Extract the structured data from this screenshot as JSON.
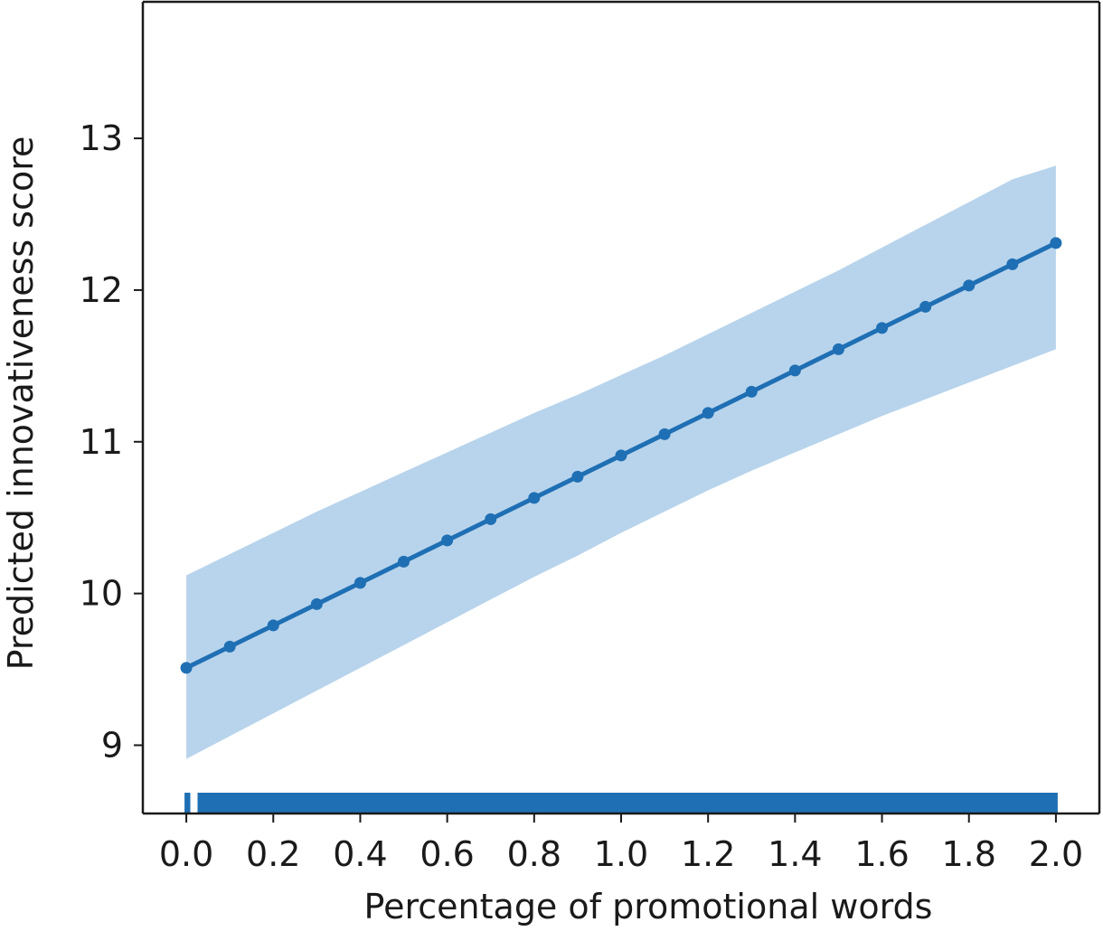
{
  "chart_data": {
    "type": "line",
    "title": "",
    "xlabel": "Percentage of promotional words",
    "ylabel": "Predicted innovativeness score",
    "xlim": [
      -0.1,
      2.1
    ],
    "ylim": [
      8.55,
      13.9
    ],
    "grid": false,
    "legend": "none",
    "xticks": [
      "0.0",
      "0.2",
      "0.4",
      "0.6",
      "0.8",
      "1.0",
      "1.2",
      "1.4",
      "1.6",
      "1.8",
      "2.0"
    ],
    "yticks": [
      "9",
      "10",
      "11",
      "12",
      "13"
    ],
    "series": [
      {
        "x": [
          0.0,
          0.1,
          0.2,
          0.3,
          0.4,
          0.5,
          0.6,
          0.7,
          0.8,
          0.9,
          1.0,
          1.1,
          1.2,
          1.3,
          1.4,
          1.5,
          1.6,
          1.7,
          1.8,
          1.9,
          2.0
        ],
        "y": [
          9.51,
          9.65,
          9.79,
          9.93,
          10.07,
          10.21,
          10.35,
          10.49,
          10.63,
          10.77,
          10.91,
          11.05,
          11.19,
          11.33,
          11.47,
          11.61,
          11.75,
          11.89,
          12.03,
          12.17,
          12.31
        ],
        "ci_lower": [
          8.91,
          9.06,
          9.21,
          9.36,
          9.51,
          9.66,
          9.81,
          9.96,
          10.11,
          10.25,
          10.4,
          10.54,
          10.68,
          10.81,
          10.93,
          11.05,
          11.17,
          11.28,
          11.39,
          11.5,
          11.61
        ],
        "ci_upper": [
          10.12,
          10.26,
          10.4,
          10.54,
          10.67,
          10.8,
          10.93,
          11.06,
          11.19,
          11.31,
          11.44,
          11.57,
          11.71,
          11.85,
          11.99,
          12.13,
          12.28,
          12.43,
          12.58,
          12.73,
          12.82
        ]
      }
    ],
    "rug": {
      "segments": [
        [
          0.0,
          0.005
        ],
        [
          0.03,
          2.0
        ]
      ]
    },
    "colors": {
      "line": "#1f6fb4",
      "band": "#b8d4ec",
      "rug": "#1f6fb4",
      "axis": "#1a1a1a"
    }
  }
}
